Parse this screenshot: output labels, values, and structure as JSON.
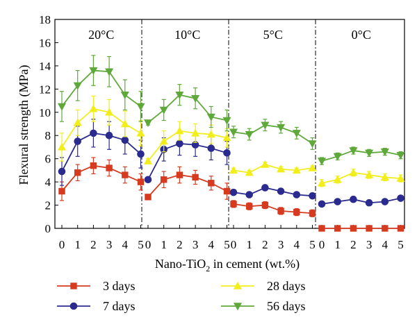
{
  "chart_data": {
    "type": "line",
    "ylabel": "Flexural strength (MPa)",
    "xlabel_main": "Nano-TiO",
    "xlabel_sub": "2",
    "xlabel_tail": " in cement (wt.%)",
    "ylim": [
      0,
      18
    ],
    "yticks": [
      "0",
      "2",
      "4",
      "6",
      "8",
      "10",
      "12",
      "14",
      "16",
      "18"
    ],
    "xticks": [
      "0",
      "1",
      "2",
      "3",
      "4",
      "5"
    ],
    "grid": false,
    "legend_position": "bottom",
    "panels": [
      {
        "label": "20°C",
        "series": [
          {
            "name": "3 days",
            "values": [
              3.2,
              4.8,
              5.4,
              5.2,
              4.6,
              4.0
            ],
            "errors": [
              0.8,
              0.7,
              0.7,
              0.7,
              0.7,
              0.7
            ]
          },
          {
            "name": "7 days",
            "values": [
              4.9,
              7.5,
              8.2,
              8.0,
              7.6,
              6.4
            ],
            "errors": [
              1.2,
              1.3,
              1.2,
              1.2,
              1.2,
              1.2
            ]
          },
          {
            "name": "28 days",
            "values": [
              7.0,
              9.1,
              10.3,
              10.0,
              9.0,
              8.2
            ],
            "errors": [
              1.2,
              1.1,
              1.1,
              1.1,
              1.1,
              1.1
            ]
          },
          {
            "name": "56 days",
            "values": [
              10.5,
              12.3,
              13.6,
              13.5,
              11.5,
              10.5
            ],
            "errors": [
              1.3,
              1.3,
              1.3,
              1.3,
              1.3,
              1.3
            ]
          }
        ]
      },
      {
        "label": "10°C",
        "series": [
          {
            "name": "3 days",
            "values": [
              2.7,
              4.2,
              4.6,
              4.4,
              3.9,
              3.2
            ],
            "errors": [
              0.2,
              0.7,
              0.7,
              0.6,
              0.6,
              0.7
            ]
          },
          {
            "name": "7 days",
            "values": [
              4.2,
              6.8,
              7.3,
              7.2,
              6.9,
              6.5
            ],
            "errors": [
              0.2,
              1.0,
              1.0,
              1.0,
              1.0,
              1.0
            ]
          },
          {
            "name": "28 days",
            "values": [
              5.8,
              7.5,
              8.4,
              8.2,
              8.1,
              7.8
            ],
            "errors": [
              0.2,
              0.9,
              0.8,
              0.8,
              0.8,
              0.8
            ]
          },
          {
            "name": "56 days",
            "values": [
              9.1,
              10.2,
              11.5,
              11.2,
              9.6,
              9.3
            ],
            "errors": [
              0.2,
              0.9,
              0.9,
              0.9,
              0.9,
              0.9
            ]
          }
        ]
      },
      {
        "label": "5°C",
        "series": [
          {
            "name": "3 days",
            "values": [
              2.1,
              1.9,
              2.0,
              1.5,
              1.4,
              1.3
            ],
            "errors": [
              0.3,
              0.3,
              0.3,
              0.3,
              0.3,
              0.3
            ]
          },
          {
            "name": "7 days",
            "values": [
              3.1,
              2.9,
              3.5,
              3.2,
              2.9,
              2.8
            ],
            "errors": [
              0.2,
              0.2,
              0.2,
              0.2,
              0.2,
              0.2
            ]
          },
          {
            "name": "28 days",
            "values": [
              5.0,
              4.8,
              5.5,
              5.1,
              5.0,
              5.2
            ],
            "errors": [
              0.2,
              0.2,
              0.2,
              0.2,
              0.2,
              0.2
            ]
          },
          {
            "name": "56 days",
            "values": [
              8.3,
              8.1,
              8.9,
              8.7,
              8.2,
              7.3
            ],
            "errors": [
              0.5,
              0.5,
              0.5,
              0.5,
              0.5,
              0.5
            ]
          }
        ]
      },
      {
        "label": "0°C",
        "series": [
          {
            "name": "3 days",
            "values": [
              0.0,
              0.0,
              0.0,
              0.0,
              0.0,
              0.0
            ],
            "errors": [
              0,
              0,
              0,
              0,
              0,
              0
            ]
          },
          {
            "name": "7 days",
            "values": [
              2.1,
              2.3,
              2.5,
              2.2,
              2.3,
              2.6
            ],
            "errors": [
              0.1,
              0.1,
              0.1,
              0.1,
              0.1,
              0.1
            ]
          },
          {
            "name": "28 days",
            "values": [
              3.9,
              4.2,
              4.8,
              4.6,
              4.4,
              4.3
            ],
            "errors": [
              0.3,
              0.3,
              0.3,
              0.3,
              0.3,
              0.3
            ]
          },
          {
            "name": "56 days",
            "values": [
              5.8,
              6.2,
              6.7,
              6.5,
              6.6,
              6.3
            ],
            "errors": [
              0.3,
              0.3,
              0.3,
              0.3,
              0.3,
              0.3
            ]
          }
        ]
      }
    ],
    "series_style": [
      {
        "name": "3 days",
        "color": "#d63a1f",
        "marker": "square"
      },
      {
        "name": "7 days",
        "color": "#2b2b8f",
        "marker": "circle"
      },
      {
        "name": "28 days",
        "color": "#f2ee1c",
        "marker": "triangle-up"
      },
      {
        "name": "56 days",
        "color": "#5fa83a",
        "marker": "triangle-down"
      }
    ]
  }
}
